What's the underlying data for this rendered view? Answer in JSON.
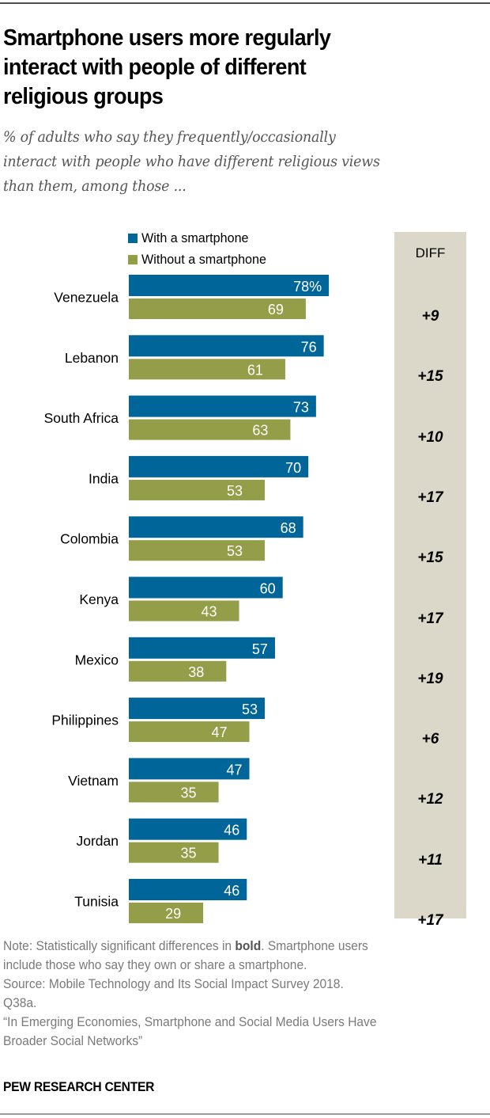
{
  "header": {
    "title_lines": [
      "Smartphone users more regularly",
      "interact with people of different",
      "religious groups"
    ],
    "subtitle_lines": [
      "% of adults who say they frequently/occasionally",
      "interact with people who have different religious views",
      "than them, among those ..."
    ]
  },
  "chart_data": {
    "type": "bar",
    "orientation": "horizontal",
    "title": "Smartphone users more regularly interact with people of different religious groups",
    "subtitle": "% of adults who say they frequently/occasionally interact with people who have different religious views than them, among those ...",
    "categories": [
      "Venezuela",
      "Lebanon",
      "South Africa",
      "India",
      "Colombia",
      "Kenya",
      "Mexico",
      "Philippines",
      "Vietnam",
      "Jordan",
      "Tunisia"
    ],
    "series": [
      {
        "name": "With a smartphone",
        "color": "#006699",
        "values": [
          78,
          76,
          73,
          70,
          68,
          60,
          57,
          53,
          47,
          46,
          46
        ]
      },
      {
        "name": "Without a smartphone",
        "color": "#949d48",
        "values": [
          69,
          61,
          63,
          53,
          53,
          43,
          38,
          47,
          35,
          35,
          29
        ]
      }
    ],
    "value_labels": {
      "with": [
        "78%",
        "76",
        "73",
        "70",
        "68",
        "60",
        "57",
        "53",
        "47",
        "46",
        "46"
      ],
      "without": [
        "69",
        "61",
        "63",
        "53",
        "53",
        "43",
        "38",
        "47",
        "35",
        "35",
        "29"
      ]
    },
    "diff": {
      "header": "DIFF",
      "values": [
        "+9",
        "+15",
        "+10",
        "+17",
        "+15",
        "+17",
        "+19",
        "+6",
        "+12",
        "+11",
        "+17"
      ],
      "significant": [
        true,
        true,
        true,
        true,
        true,
        true,
        true,
        true,
        true,
        true,
        true
      ]
    },
    "xlim": [
      0,
      100
    ],
    "xlabel": "",
    "ylabel": "",
    "grid": false,
    "legend_position": "top"
  },
  "colors": {
    "with_smartphone": "#006699",
    "without_smartphone": "#949d48",
    "diff_background": "#dcd8c9"
  },
  "footer": {
    "note_prefix": "Note: Statistically significant differences in ",
    "note_bold": "bold",
    "note_suffix": ". Smartphone users",
    "note_line2": "include those who say they own or share a smartphone.",
    "source_line1": "Source: Mobile Technology and Its Social Impact Survey 2018.",
    "source_line2": "Q38a.",
    "report_line1": "“In Emerging Economies, Smartphone and Social Media Users Have",
    "report_line2": "Broader Social Networks”",
    "brand": "PEW RESEARCH CENTER"
  }
}
